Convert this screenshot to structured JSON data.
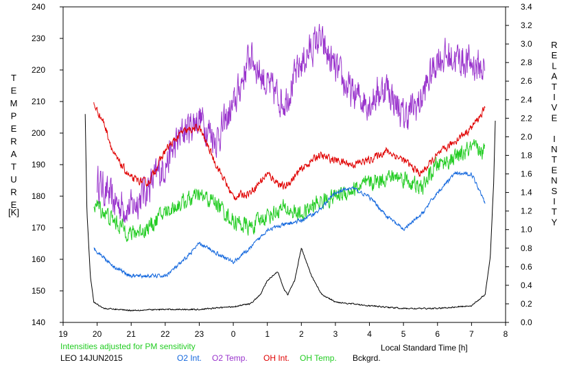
{
  "chart_data": {
    "type": "line",
    "x_ticks": [
      "19",
      "20",
      "21",
      "22",
      "23",
      "0",
      "1",
      "2",
      "3",
      "4",
      "5",
      "6",
      "7",
      "8"
    ],
    "xlabel": "Local Standard Time [h]",
    "ylabel_left_letters": [
      "T",
      "E",
      "M",
      "P",
      "E",
      "R",
      "A",
      "T",
      "U",
      "R",
      "E"
    ],
    "ylabel_left_unit": "[K]",
    "ylabel_right_letters": [
      "R",
      "E",
      "L",
      "A",
      "T",
      "I",
      "V",
      "E",
      "",
      "I",
      "N",
      "T",
      "E",
      "N",
      "S",
      "I",
      "T",
      "Y"
    ],
    "ylim_left": [
      140,
      240
    ],
    "ylim_right": [
      0.0,
      3.4
    ],
    "y_left_ticks": [
      "140",
      "150",
      "160",
      "170",
      "180",
      "190",
      "200",
      "210",
      "220",
      "230",
      "240"
    ],
    "y_right_ticks": [
      "0.0",
      "0.2",
      "0.4",
      "0.6",
      "0.8",
      "1.0",
      "1.2",
      "1.4",
      "1.6",
      "1.8",
      "2.0",
      "2.2",
      "2.4",
      "2.6",
      "2.8",
      "3.0",
      "3.2",
      "3.4"
    ],
    "x_range_hours": [
      19,
      32
    ],
    "series": [
      {
        "name": "O2 Temp.",
        "axis": "left",
        "color": "#9933cc",
        "noise": 8,
        "x": [
          20.0,
          20.5,
          21.0,
          21.5,
          22.0,
          22.5,
          23.0,
          23.5,
          24.0,
          24.5,
          25.0,
          25.5,
          26.0,
          26.5,
          27.0,
          27.5,
          28.0,
          28.5,
          29.0,
          29.5,
          30.0,
          30.5,
          31.0,
          31.4
        ],
        "y": [
          185,
          178,
          176,
          183,
          190,
          200,
          205,
          198,
          208,
          225,
          215,
          210,
          222,
          230,
          220,
          212,
          210,
          215,
          205,
          210,
          224,
          224,
          222,
          220
        ]
      },
      {
        "name": "OH Int.",
        "axis": "right",
        "color": "#e00000",
        "noise": 0.06,
        "x": [
          19.9,
          20.2,
          20.5,
          21.0,
          21.5,
          22.0,
          22.5,
          23.0,
          23.5,
          24.0,
          24.5,
          25.0,
          25.5,
          26.0,
          26.5,
          27.0,
          27.5,
          28.0,
          28.5,
          29.0,
          29.5,
          30.0,
          30.5,
          31.0,
          31.4
        ],
        "y": [
          2.35,
          2.15,
          1.8,
          1.55,
          1.5,
          1.85,
          2.05,
          2.1,
          1.7,
          1.35,
          1.4,
          1.6,
          1.45,
          1.65,
          1.8,
          1.75,
          1.7,
          1.75,
          1.85,
          1.75,
          1.6,
          1.8,
          1.95,
          2.1,
          2.3
        ]
      },
      {
        "name": "OH Temp.",
        "axis": "left",
        "color": "#22cc22",
        "noise": 4,
        "x": [
          19.9,
          20.5,
          21.0,
          21.5,
          22.0,
          22.5,
          23.0,
          23.5,
          24.0,
          24.5,
          25.0,
          25.5,
          26.0,
          26.5,
          27.0,
          27.5,
          28.0,
          28.5,
          29.0,
          29.5,
          30.0,
          30.5,
          31.0,
          31.4
        ],
        "y": [
          178,
          172,
          168,
          170,
          175,
          178,
          180,
          178,
          172,
          170,
          174,
          176,
          174,
          178,
          180,
          182,
          184,
          186,
          186,
          182,
          190,
          192,
          195,
          194
        ]
      },
      {
        "name": "O2 Int.",
        "axis": "right",
        "color": "#1166dd",
        "noise": 0.03,
        "x": [
          19.9,
          20.5,
          21.0,
          21.5,
          22.0,
          22.5,
          23.0,
          23.5,
          24.0,
          24.5,
          25.0,
          25.5,
          26.0,
          26.5,
          27.0,
          27.5,
          28.0,
          28.5,
          29.0,
          29.5,
          30.0,
          30.5,
          31.0,
          31.4
        ],
        "y": [
          0.8,
          0.6,
          0.5,
          0.5,
          0.5,
          0.65,
          0.85,
          0.75,
          0.65,
          0.8,
          1.0,
          1.05,
          1.1,
          1.2,
          1.4,
          1.45,
          1.35,
          1.15,
          1.0,
          1.15,
          1.4,
          1.6,
          1.6,
          1.3
        ]
      },
      {
        "name": "Bckgrd.",
        "axis": "right",
        "color": "#000000",
        "noise": 0.01,
        "x": [
          19.65,
          19.7,
          19.8,
          19.9,
          20.2,
          21.0,
          22.0,
          23.0,
          24.0,
          24.5,
          24.8,
          25.0,
          25.3,
          25.5,
          25.6,
          25.8,
          26.0,
          26.1,
          26.3,
          26.6,
          27.0,
          28.0,
          29.0,
          29.5,
          30.0,
          31.0,
          31.4,
          31.55,
          31.65,
          31.7
        ],
        "y": [
          2.25,
          1.2,
          0.5,
          0.22,
          0.15,
          0.13,
          0.14,
          0.14,
          0.17,
          0.2,
          0.3,
          0.45,
          0.55,
          0.35,
          0.3,
          0.45,
          0.8,
          0.7,
          0.5,
          0.3,
          0.22,
          0.18,
          0.15,
          0.15,
          0.15,
          0.18,
          0.3,
          0.7,
          1.5,
          2.2
        ]
      }
    ]
  },
  "footer": {
    "note": "Intensities adjusted for PM sensitivity",
    "station": "LEO 14JUN2015",
    "legend": [
      "O2 Int.",
      "O2 Temp.",
      "OH Int.",
      "OH Temp.",
      "Bckgrd."
    ]
  },
  "colors": {
    "note": "#22cc22",
    "o2_int": "#1166dd",
    "o2_temp": "#9933cc",
    "oh_int": "#e00000",
    "oh_temp": "#22cc22",
    "bckgrd": "#000000"
  }
}
